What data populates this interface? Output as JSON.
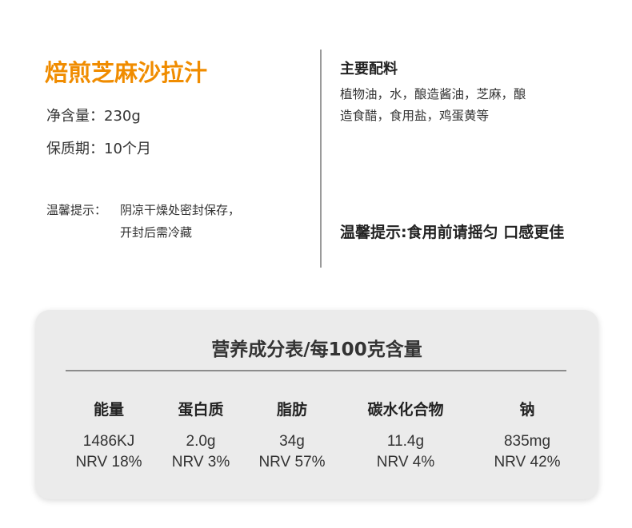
{
  "product": {
    "title": "焙煎芝麻沙拉汁",
    "net_content": "净含量：230g",
    "shelf_life": "保质期：10个月",
    "storage_tip_label": "温馨提示：",
    "storage_tip_line1": "阴凉干燥处密封保存，",
    "storage_tip_line2": "开封后需冷藏",
    "title_color": "#f08c00"
  },
  "ingredients": {
    "heading": "主要配料",
    "line1": "植物油，水，酿造酱油，芝麻，酿",
    "line2": "造食醋，食用盐，鸡蛋黄等",
    "tip": "温馨提示:食用前请摇匀 口感更佳"
  },
  "nutrition": {
    "title": "营养成分表/每100克含量",
    "columns": [
      {
        "name": "能量",
        "value": "1486KJ",
        "nrv": "NRV 18%"
      },
      {
        "name": "蛋白质",
        "value": "2.0g",
        "nrv": "NRV 3%"
      },
      {
        "name": "脂肪",
        "value": "34g",
        "nrv": "NRV 57%"
      },
      {
        "name": "碳水化合物",
        "value": "11.4g",
        "nrv": "NRV 4%"
      },
      {
        "name": "钠",
        "value": "835mg",
        "nrv": "NRV 42%"
      }
    ]
  }
}
